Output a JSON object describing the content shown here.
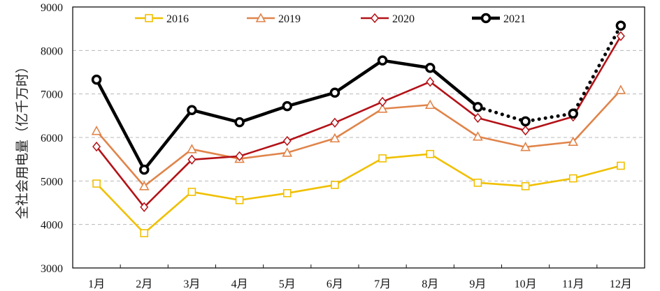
{
  "chart_data": {
    "type": "line",
    "title": "",
    "xlabel": "",
    "ylabel": "全社会用电量（亿千万时）",
    "ylim": [
      3000,
      9000
    ],
    "yticks": [
      "3000",
      "4000",
      "5000",
      "6000",
      "7000",
      "8000",
      "9000"
    ],
    "grid": "horizontal dashed",
    "legend_position": "top",
    "categories": [
      "1月",
      "2月",
      "3月",
      "4月",
      "5月",
      "6月",
      "7月",
      "8月",
      "9月",
      "10月",
      "11月",
      "12月"
    ],
    "series": [
      {
        "name": "2016",
        "color": "#f0c000",
        "marker": "square",
        "values": [
          4940,
          3800,
          4750,
          4560,
          4720,
          4910,
          5520,
          5620,
          4960,
          4880,
          5060,
          5350
        ]
      },
      {
        "name": "2019",
        "color": "#e0844a",
        "marker": "triangle",
        "values": [
          6150,
          4880,
          5730,
          5510,
          5650,
          5980,
          6660,
          6750,
          6020,
          5780,
          5900,
          7090
        ]
      },
      {
        "name": "2020",
        "color": "#b31217",
        "marker": "diamond",
        "values": [
          5790,
          4400,
          5490,
          5570,
          5920,
          6340,
          6820,
          7280,
          6450,
          6160,
          6480,
          8330
        ]
      },
      {
        "name": "2021",
        "color": "#000000",
        "marker": "circle",
        "values": [
          7330,
          5260,
          6630,
          6350,
          6720,
          7030,
          7770,
          7600,
          6700,
          6370,
          6550,
          8570
        ],
        "dotted_from_index": 8
      }
    ]
  }
}
